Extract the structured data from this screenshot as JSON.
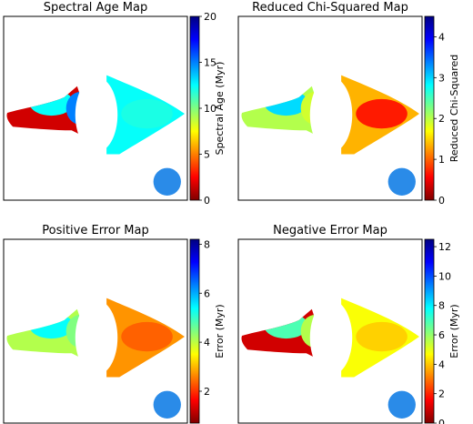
{
  "chart_data": [
    {
      "type": "heatmap",
      "title": "Spectral Age Map",
      "colorbar": {
        "label": "Spectral Age (Myr)",
        "range": [
          0,
          20
        ],
        "ticks": [
          0,
          5,
          10,
          15,
          20
        ]
      },
      "colormap": "jet_r",
      "beam_color": "#2a8be8",
      "lobe_values": {
        "left_base": 0.08,
        "left_outer": 0.62,
        "left_inner": 0.75,
        "right": 0.62,
        "right_core": 0.6
      }
    },
    {
      "type": "heatmap",
      "title": "Reduced Chi-Squared Map",
      "colorbar": {
        "label": "Reduced Chi-Squared",
        "range": [
          0,
          4.5
        ],
        "ticks": [
          0,
          1,
          2,
          3,
          4
        ]
      },
      "colormap": "jet_r",
      "beam_color": "#2a8be8",
      "lobe_values": {
        "left_base": 0.45,
        "left_outer": 0.66,
        "left_inner": 0.42,
        "right": 0.3,
        "right_core": 0.15
      }
    },
    {
      "type": "heatmap",
      "title": "Positive Error Map",
      "colorbar": {
        "label": "Error (Myr)",
        "range": [
          0.7,
          8.2
        ],
        "ticks": [
          2,
          4,
          6,
          8
        ]
      },
      "colormap": "jet_r",
      "beam_color": "#2a8be8",
      "lobe_values": {
        "left_base": 0.45,
        "left_outer": 0.62,
        "left_inner": 0.5,
        "right": 0.27,
        "right_core": 0.22
      }
    },
    {
      "type": "heatmap",
      "title": "Negative Error Map",
      "colorbar": {
        "label": "Error (Myr)",
        "range": [
          0,
          12.5
        ],
        "ticks": [
          0,
          2,
          4,
          6,
          8,
          10,
          12
        ]
      },
      "colormap": "jet_r",
      "beam_color": "#2a8be8",
      "lobe_values": {
        "left_base": 0.08,
        "left_outer": 0.55,
        "left_inner": 0.45,
        "right": 0.38,
        "right_core": 0.33
      }
    }
  ]
}
